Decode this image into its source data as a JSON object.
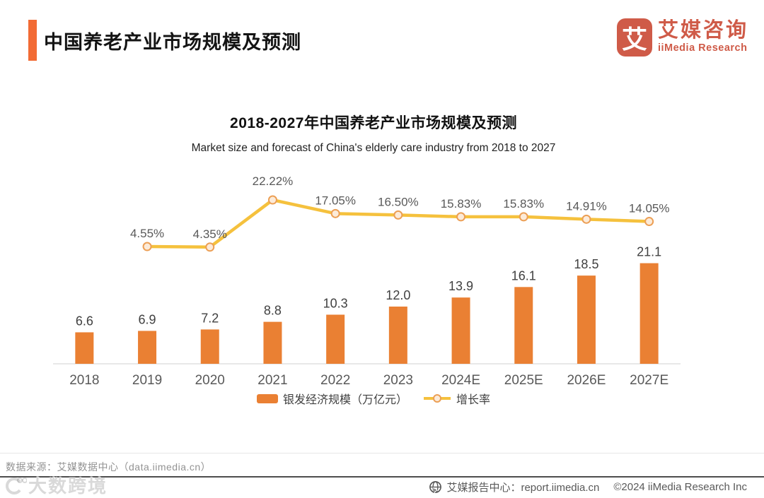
{
  "header": {
    "title": "中国养老产业市场规模及预测"
  },
  "logo": {
    "icon_char": "艾",
    "name_cn": "艾媒咨询",
    "name_en": "iiMedia Research"
  },
  "chart_data": {
    "type": "bar+line combo",
    "title": "2018-2027年中国养老产业市场规模及预测",
    "subtitle": "Market size and forecast of China's elderly care industry from 2018 to 2027",
    "categories": [
      "2018",
      "2019",
      "2020",
      "2021",
      "2022",
      "2023",
      "2024E",
      "2025E",
      "2026E",
      "2027E"
    ],
    "series": [
      {
        "name": "银发经济规模（万亿元）",
        "type": "bar",
        "unit": "万亿元",
        "values": [
          6.6,
          6.9,
          7.2,
          8.8,
          10.3,
          12.0,
          13.9,
          16.1,
          18.5,
          21.1
        ],
        "labels": [
          "6.6",
          "6.9",
          "7.2",
          "8.8",
          "10.3",
          "12.0",
          "13.9",
          "16.1",
          "18.5",
          "21.1"
        ]
      },
      {
        "name": "增长率",
        "type": "line",
        "start_category": "2019",
        "values_pct": [
          4.55,
          4.35,
          22.22,
          17.05,
          16.5,
          15.83,
          15.83,
          14.91,
          14.05
        ],
        "labels": [
          "4.55%",
          "4.35%",
          "22.22%",
          "17.05%",
          "16.50%",
          "15.83%",
          "15.83%",
          "14.91%",
          "14.05%"
        ]
      }
    ],
    "axes": {
      "y_axis_visible": false,
      "gridlines": false,
      "baseline_visible": true
    },
    "legend_position": "bottom-center"
  },
  "legend": {
    "bar_label": "银发经济规模（万亿元）",
    "line_label": "增长率"
  },
  "footer": {
    "source": "数据来源：艾媒数据中心（data.iimedia.cn）",
    "report_center": "艾媒报告中心：report.iimedia.cn",
    "copyright": "©2024  iiMedia Research Inc",
    "watermark": "大数跨境"
  },
  "colors": {
    "accent": "#F26B35",
    "bar": "#EA8033",
    "line": "#F5C13D",
    "marker_fill": "#FCEBD9",
    "marker_stroke": "#EC9F55",
    "logo": "#CF5B48",
    "axis_line": "#d9d9d9",
    "bar_label": "#404040",
    "pct_label": "#595959",
    "tick_label": "#595959"
  }
}
